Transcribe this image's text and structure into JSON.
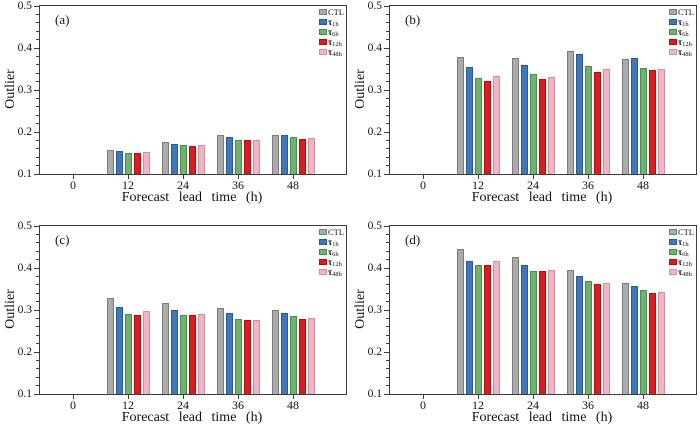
{
  "series_style": [
    {
      "label": "CTL",
      "sub": "",
      "fill": "#ababab",
      "edge": "#7b7b7b"
    },
    {
      "label": "τ",
      "sub": "1h",
      "fill": "#3c78be",
      "edge": "#2a5a94"
    },
    {
      "label": "τ",
      "sub": "6h",
      "fill": "#6eb46e",
      "edge": "#4c8d4e"
    },
    {
      "label": "τ",
      "sub": "12h",
      "fill": "#e3191b",
      "edge": "#a81113"
    },
    {
      "label": "τ",
      "sub": "48h",
      "fill": "#f3b3bf",
      "edge": "#cf929e"
    }
  ],
  "chart_data": [
    {
      "type": "bar",
      "panel": "(a)",
      "ylabel": "Outlier",
      "xlabel": "Forecast lead time (h)",
      "ylim": [
        0.1,
        0.5
      ],
      "yticks": [
        0.1,
        0.2,
        0.3,
        0.4,
        0.5
      ],
      "y_minor_step": 0.02,
      "xticks": [
        0,
        12,
        24,
        36,
        48
      ],
      "categories": [
        12,
        24,
        36,
        48
      ],
      "legend_position": "top-right",
      "grid": false,
      "series": [
        {
          "name": "CTL",
          "values": [
            0.158,
            0.176,
            0.192,
            0.193
          ]
        },
        {
          "name": "τ_1h",
          "values": [
            0.154,
            0.172,
            0.188,
            0.192
          ]
        },
        {
          "name": "τ_6h",
          "values": [
            0.15,
            0.168,
            0.182,
            0.188
          ]
        },
        {
          "name": "τ_12h",
          "values": [
            0.15,
            0.167,
            0.181,
            0.184
          ]
        },
        {
          "name": "τ_48h",
          "values": [
            0.152,
            0.17,
            0.182,
            0.186
          ]
        }
      ]
    },
    {
      "type": "bar",
      "panel": "(b)",
      "ylabel": "Outlier",
      "xlabel": "Forecast lead time (h)",
      "ylim": [
        0.1,
        0.5
      ],
      "yticks": [
        0.1,
        0.2,
        0.3,
        0.4,
        0.5
      ],
      "y_minor_step": 0.02,
      "xticks": [
        0,
        12,
        24,
        36,
        48
      ],
      "categories": [
        12,
        24,
        36,
        48
      ],
      "legend_position": "top-right",
      "grid": false,
      "series": [
        {
          "name": "CTL",
          "values": [
            0.378,
            0.376,
            0.394,
            0.374
          ]
        },
        {
          "name": "τ_1h",
          "values": [
            0.355,
            0.36,
            0.385,
            0.376
          ]
        },
        {
          "name": "τ_6h",
          "values": [
            0.328,
            0.338,
            0.357,
            0.353
          ]
        },
        {
          "name": "τ_12h",
          "values": [
            0.321,
            0.327,
            0.343,
            0.347
          ]
        },
        {
          "name": "τ_48h",
          "values": [
            0.333,
            0.331,
            0.351,
            0.349
          ]
        }
      ]
    },
    {
      "type": "bar",
      "panel": "(c)",
      "ylabel": "Outlier",
      "xlabel": "Forecast lead time (h)",
      "ylim": [
        0.1,
        0.5
      ],
      "yticks": [
        0.1,
        0.2,
        0.3,
        0.4,
        0.5
      ],
      "y_minor_step": 0.02,
      "xticks": [
        0,
        12,
        24,
        36,
        48
      ],
      "categories": [
        12,
        24,
        36,
        48
      ],
      "legend_position": "top-right",
      "grid": false,
      "series": [
        {
          "name": "CTL",
          "values": [
            0.329,
            0.316,
            0.305,
            0.3
          ]
        },
        {
          "name": "τ_1h",
          "values": [
            0.306,
            0.301,
            0.293,
            0.293
          ]
        },
        {
          "name": "τ_6h",
          "values": [
            0.29,
            0.289,
            0.279,
            0.286
          ]
        },
        {
          "name": "τ_12h",
          "values": [
            0.289,
            0.288,
            0.277,
            0.279
          ]
        },
        {
          "name": "τ_48h",
          "values": [
            0.298,
            0.291,
            0.276,
            0.281
          ]
        }
      ]
    },
    {
      "type": "bar",
      "panel": "(d)",
      "ylabel": "Outlier",
      "xlabel": "Forecast lead time (h)",
      "ylim": [
        0.1,
        0.5
      ],
      "yticks": [
        0.1,
        0.2,
        0.3,
        0.4,
        0.5
      ],
      "y_minor_step": 0.02,
      "xticks": [
        0,
        12,
        24,
        36,
        48
      ],
      "categories": [
        12,
        24,
        36,
        48
      ],
      "legend_position": "top-right",
      "grid": false,
      "series": [
        {
          "name": "CTL",
          "values": [
            0.445,
            0.426,
            0.396,
            0.365
          ]
        },
        {
          "name": "τ_1h",
          "values": [
            0.417,
            0.408,
            0.38,
            0.356
          ]
        },
        {
          "name": "τ_6h",
          "values": [
            0.406,
            0.394,
            0.368,
            0.347
          ]
        },
        {
          "name": "τ_12h",
          "values": [
            0.407,
            0.393,
            0.363,
            0.341
          ]
        },
        {
          "name": "τ_48h",
          "values": [
            0.416,
            0.396,
            0.365,
            0.342
          ]
        }
      ]
    }
  ]
}
